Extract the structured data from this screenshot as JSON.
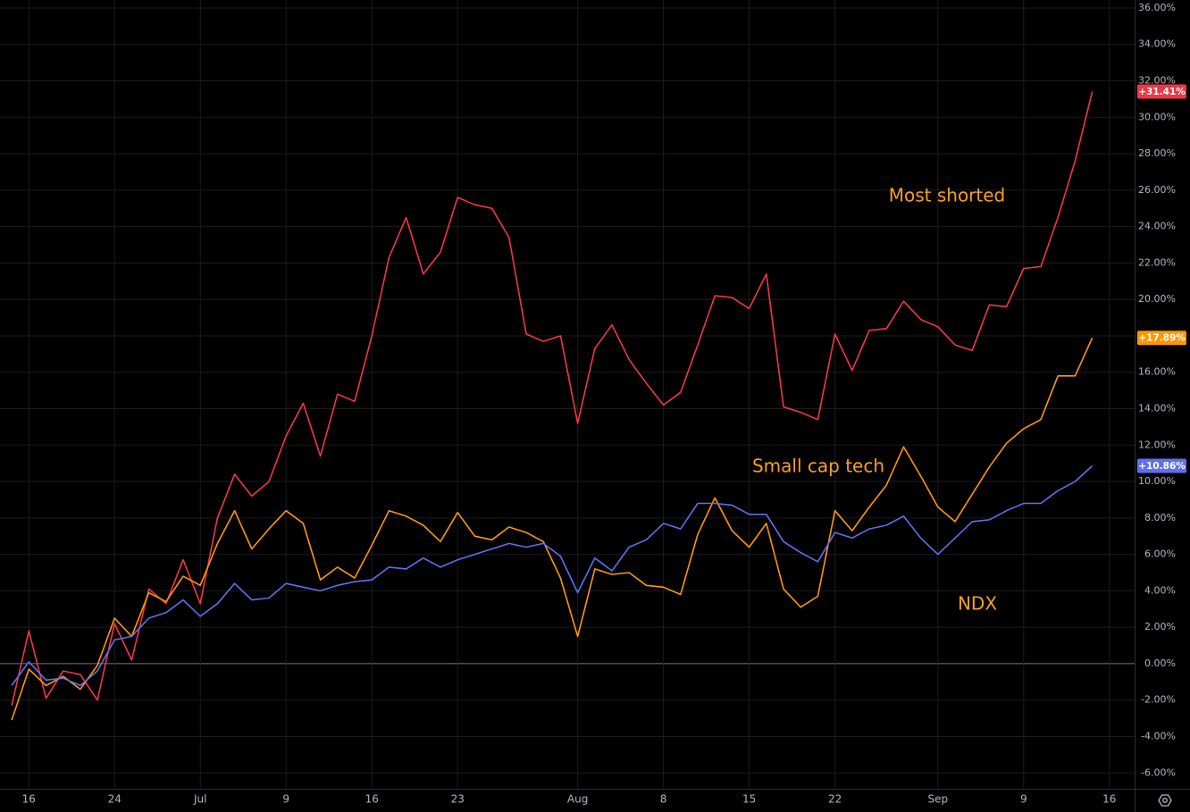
{
  "chart_data": {
    "type": "line",
    "x": [
      0,
      1,
      2,
      3,
      4,
      5,
      6,
      7,
      8,
      9,
      10,
      11,
      12,
      13,
      14,
      15,
      16,
      17,
      18,
      19,
      20,
      21,
      22,
      23,
      24,
      25,
      26,
      27,
      28,
      29,
      30,
      31,
      32,
      33,
      34,
      35,
      36,
      37,
      38,
      39,
      40,
      41,
      42,
      43,
      44,
      45,
      46,
      47,
      48,
      49,
      50,
      51,
      52,
      53,
      54,
      55,
      56,
      57,
      58,
      59,
      60,
      61,
      62,
      63
    ],
    "xlim": [
      -0.68,
      65.47
    ],
    "xticks": [
      {
        "value": 1,
        "label": "16"
      },
      {
        "value": 6,
        "label": "24"
      },
      {
        "value": 11,
        "label": "Jul"
      },
      {
        "value": 16,
        "label": "9"
      },
      {
        "value": 21,
        "label": "16"
      },
      {
        "value": 26,
        "label": "23"
      },
      {
        "value": 33,
        "label": "Aug"
      },
      {
        "value": 38,
        "label": "8"
      },
      {
        "value": 43,
        "label": "15"
      },
      {
        "value": 48,
        "label": "22"
      },
      {
        "value": 54,
        "label": "Sep"
      },
      {
        "value": 59,
        "label": "9"
      },
      {
        "value": 64,
        "label": "16"
      }
    ],
    "ylim": [
      -6.87,
      36.44
    ],
    "yticks": [
      {
        "value": -6,
        "label": "-6.00%"
      },
      {
        "value": -4,
        "label": "-4.00%"
      },
      {
        "value": -2,
        "label": "-2.00%"
      },
      {
        "value": 0,
        "label": "0.00%"
      },
      {
        "value": 2,
        "label": "2.00%"
      },
      {
        "value": 4,
        "label": "4.00%"
      },
      {
        "value": 6,
        "label": "6.00%"
      },
      {
        "value": 8,
        "label": "8.00%"
      },
      {
        "value": 10,
        "label": "10.00%"
      },
      {
        "value": 12,
        "label": "12.00%"
      },
      {
        "value": 14,
        "label": "14.00%"
      },
      {
        "value": 16,
        "label": "16.00%"
      },
      {
        "value": 18,
        "label": "18.00%"
      },
      {
        "value": 20,
        "label": "20.00%"
      },
      {
        "value": 22,
        "label": "22.00%"
      },
      {
        "value": 24,
        "label": "24.00%"
      },
      {
        "value": 26,
        "label": "26.00%"
      },
      {
        "value": 28,
        "label": "28.00%"
      },
      {
        "value": 30,
        "label": "30.00%"
      },
      {
        "value": 32,
        "label": "32.00%"
      },
      {
        "value": 34,
        "label": "34.00%"
      },
      {
        "value": 36,
        "label": "36.00%"
      }
    ],
    "grid": true,
    "annotation_color": "#f7a21b",
    "series": [
      {
        "name": "Most shorted",
        "color": "#f23645",
        "values": [
          -2.3,
          1.8,
          -1.9,
          -0.4,
          -0.6,
          -2.0,
          2.2,
          0.2,
          4.1,
          3.3,
          5.7,
          3.3,
          8.0,
          10.4,
          9.2,
          10.0,
          12.5,
          14.3,
          11.4,
          14.8,
          14.4,
          18.0,
          22.3,
          24.5,
          21.4,
          22.6,
          25.6,
          25.2,
          25.0,
          23.4,
          18.1,
          17.7,
          18.0,
          13.2,
          17.3,
          18.6,
          16.7,
          15.4,
          14.2,
          14.9,
          17.5,
          20.2,
          20.1,
          19.5,
          21.4,
          14.1,
          13.8,
          13.4,
          18.1,
          16.1,
          18.3,
          18.4,
          19.9,
          18.9,
          18.5,
          17.5,
          17.2,
          19.7,
          19.6,
          21.7,
          21.8,
          24.5,
          27.6,
          31.41
        ],
        "value_labels": [
          null,
          null,
          null,
          null,
          null,
          null,
          null,
          null,
          null,
          null,
          null,
          null,
          null,
          null,
          null,
          null,
          null,
          null,
          null,
          null,
          null,
          null,
          null,
          null,
          null,
          null,
          null,
          null,
          null,
          null,
          null,
          null,
          null,
          null,
          null,
          null,
          null,
          null,
          null,
          null,
          null,
          null,
          null,
          null,
          null,
          null,
          null,
          null,
          null,
          null,
          null,
          null,
          null,
          null,
          null,
          null,
          null,
          null,
          null,
          null,
          null,
          null,
          null,
          "+31.41%"
        ]
      },
      {
        "name": "Small cap tech",
        "color": "#ff9800",
        "values": [
          -3.1,
          -0.3,
          -1.2,
          -0.7,
          -1.4,
          -0.1,
          2.5,
          1.5,
          3.9,
          3.4,
          4.8,
          4.3,
          6.6,
          8.4,
          6.3,
          7.4,
          8.4,
          7.7,
          4.6,
          5.3,
          4.7,
          6.5,
          8.4,
          8.1,
          7.6,
          6.7,
          8.3,
          7.0,
          6.8,
          7.5,
          7.2,
          6.7,
          4.7,
          1.5,
          5.2,
          4.9,
          5.0,
          4.3,
          4.2,
          3.8,
          7.1,
          9.1,
          7.3,
          6.4,
          7.7,
          4.1,
          3.1,
          3.7,
          8.4,
          7.3,
          8.6,
          9.8,
          11.9,
          10.3,
          8.6,
          7.8,
          9.3,
          10.8,
          12.1,
          12.9,
          13.4,
          15.8,
          15.8,
          17.89
        ],
        "value_labels": [
          null,
          null,
          null,
          null,
          null,
          null,
          null,
          null,
          null,
          null,
          null,
          null,
          null,
          null,
          null,
          null,
          null,
          null,
          null,
          null,
          null,
          null,
          null,
          null,
          null,
          null,
          null,
          null,
          null,
          null,
          null,
          null,
          null,
          null,
          null,
          null,
          null,
          null,
          null,
          null,
          null,
          null,
          null,
          null,
          null,
          null,
          null,
          null,
          null,
          null,
          null,
          null,
          null,
          null,
          null,
          null,
          null,
          null,
          null,
          null,
          null,
          null,
          null,
          "+17.89%"
        ]
      },
      {
        "name": "NDX",
        "color": "#5f6ff0",
        "values": [
          -1.2,
          0.1,
          -0.9,
          -0.8,
          -1.2,
          -0.4,
          1.3,
          1.5,
          2.5,
          2.8,
          3.5,
          2.6,
          3.3,
          4.4,
          3.5,
          3.6,
          4.4,
          4.2,
          4.0,
          4.3,
          4.5,
          4.6,
          5.3,
          5.2,
          5.8,
          5.3,
          5.7,
          6.0,
          6.3,
          6.6,
          6.4,
          6.6,
          5.9,
          3.9,
          5.8,
          5.1,
          6.4,
          6.8,
          7.7,
          7.4,
          8.8,
          8.8,
          8.7,
          8.2,
          8.2,
          6.7,
          6.1,
          5.6,
          7.2,
          6.9,
          7.4,
          7.6,
          8.1,
          6.9,
          6.0,
          6.9,
          7.8,
          7.9,
          8.4,
          8.8,
          8.8,
          9.5,
          10.0,
          10.86
        ],
        "value_labels": [
          null,
          null,
          null,
          null,
          null,
          null,
          null,
          null,
          null,
          null,
          null,
          null,
          null,
          null,
          null,
          null,
          null,
          null,
          null,
          null,
          null,
          null,
          null,
          null,
          null,
          null,
          null,
          null,
          null,
          null,
          null,
          null,
          null,
          null,
          null,
          null,
          null,
          null,
          null,
          null,
          null,
          null,
          null,
          null,
          null,
          null,
          null,
          null,
          null,
          null,
          null,
          null,
          null,
          null,
          null,
          null,
          null,
          null,
          null,
          null,
          null,
          null,
          null,
          "+10.86%"
        ]
      }
    ]
  }
}
